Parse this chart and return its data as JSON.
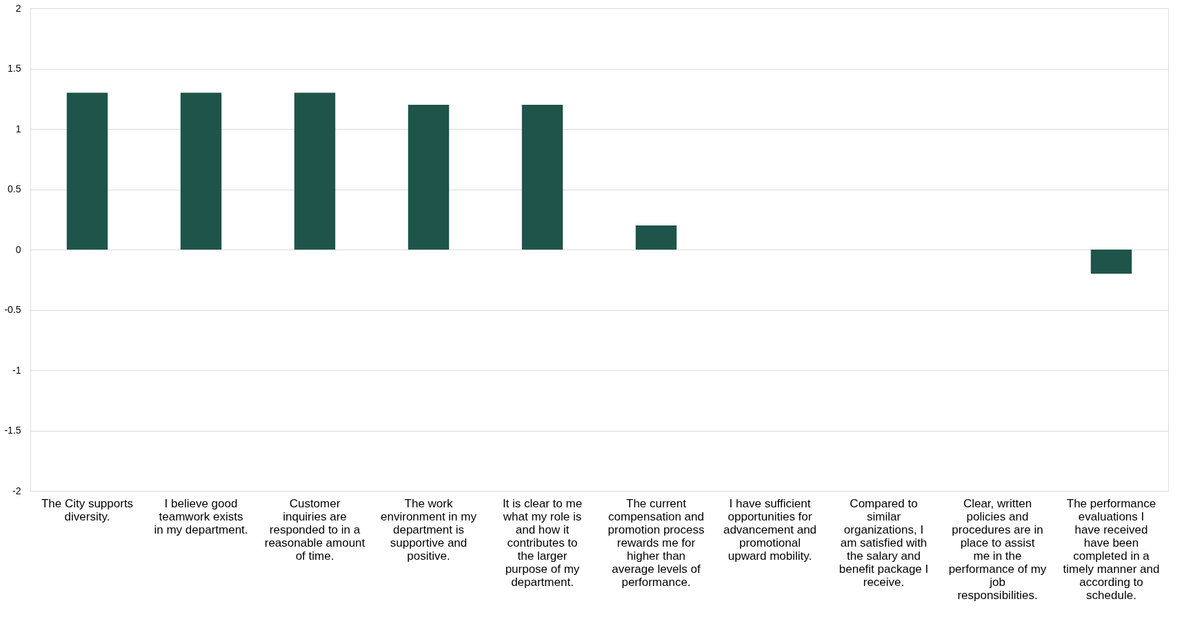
{
  "chart_data": {
    "type": "bar",
    "categories": [
      "The City supports diversity.",
      "I believe good teamwork exists in my department.",
      "Customer inquiries are responded to in a reasonable amount of time.",
      "The work environment in my department is supportive and positive.",
      "It is clear to me what my role is and how it contributes to the larger purpose of my department.",
      "The current compensation and promotion process rewards me for higher than average levels of performance.",
      "I have sufficient opportunities for advancement and promotional upward mobility.",
      "Compared to similar organizations, I am satisfied with the salary and benefit package I receive.",
      "Clear, written policies and procedures are in place to assist me in the performance of my job responsibilities.",
      "The performance evaluations I have received have been completed in a timely manner and according to schedule."
    ],
    "values": [
      1.3,
      1.3,
      1.3,
      1.2,
      1.2,
      0.2,
      0,
      0,
      0,
      -0.2
    ],
    "color": "#1e5449",
    "ylim": [
      -2,
      2
    ],
    "yticks": [
      -2,
      -1.5,
      -1,
      -0.5,
      0,
      0.5,
      1,
      1.5,
      2
    ],
    "grid": "y"
  }
}
